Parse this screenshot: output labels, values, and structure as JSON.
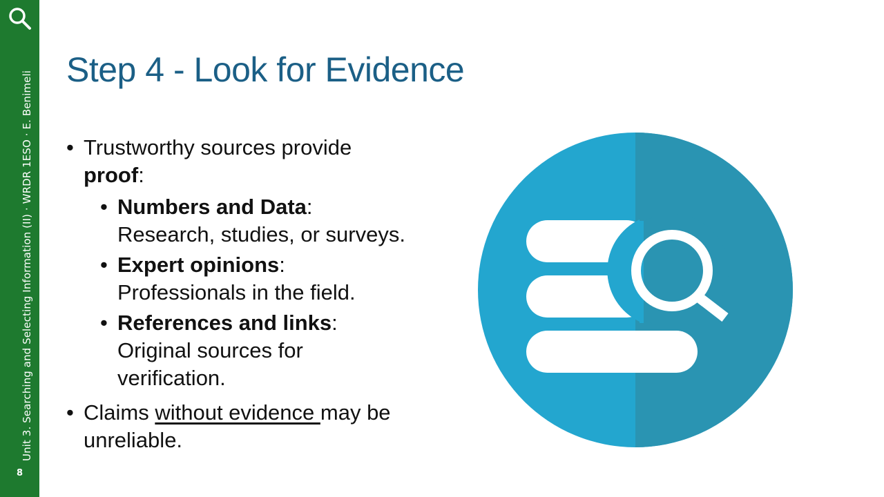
{
  "sidebar": {
    "text": "Unit 3. Searching and Selecting Information (II) · WRDR 1ESO · E. Benimeli",
    "page_number": "8",
    "icon": "search-icon",
    "color": "#1e7a2f"
  },
  "slide": {
    "title": "Step 4 - Look for Evidence",
    "bullets": {
      "b1": {
        "text": "Trustworthy sources provide",
        "bold": "proof",
        "suffix": ":"
      },
      "sub1": {
        "bold": "Numbers and Data",
        "suffix": ":",
        "text": "Research, studies, or surveys."
      },
      "sub2": {
        "bold": "Expert opinions",
        "suffix": ":",
        "text": "Professionals in the field."
      },
      "sub3": {
        "bold": "References and links",
        "suffix": ":",
        "text": "Original sources for verification."
      },
      "b2": {
        "prefix": "Claims ",
        "underlined": "without evidence ",
        "text": "may be unreliable."
      }
    },
    "bullet_char": "•",
    "graphic_icon": "database-search-icon",
    "colors": {
      "title": "#1b5f86",
      "circle_left": "#23a6cf",
      "circle_right": "#2a94b2"
    }
  }
}
